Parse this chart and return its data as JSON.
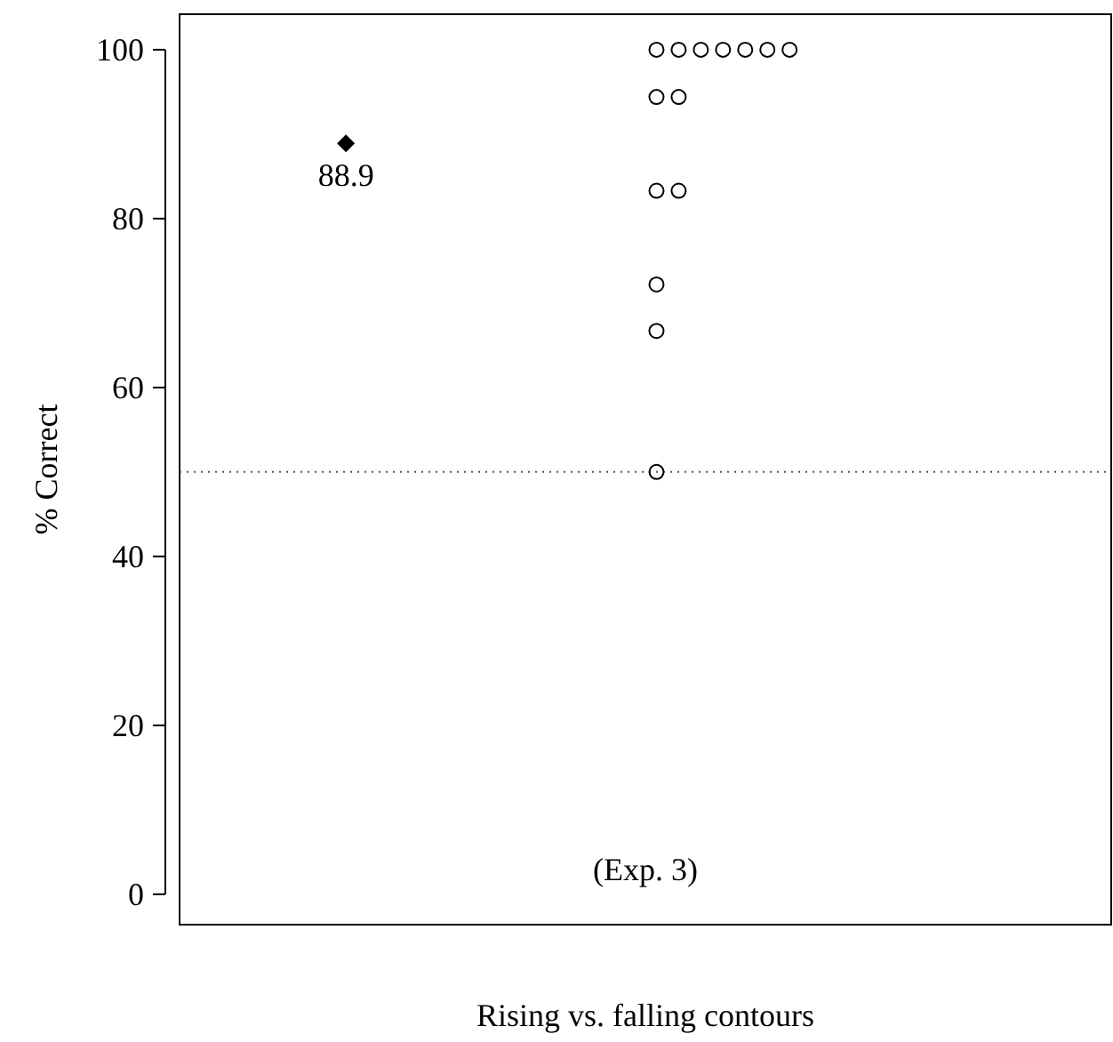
{
  "chart_data": {
    "type": "scatter",
    "ylabel": "% Correct",
    "xlabel": "Rising vs. falling contours",
    "annotations": [
      "(Exp. 3)"
    ],
    "categories": [
      null,
      null,
      null,
      null,
      null,
      null,
      null,
      null,
      null,
      null,
      null,
      null,
      null,
      null,
      null,
      null,
      null,
      null,
      null,
      null,
      null,
      null,
      null,
      null,
      null,
      null,
      null,
      null,
      null,
      null,
      null,
      null,
      null,
      null,
      null,
      null,
      null,
      null,
      null,
      null,
      null,
      null
    ],
    "ylim": [
      -3.6,
      104.2
    ],
    "yticks": [
      0,
      20,
      40,
      60,
      80,
      100
    ],
    "grid": false,
    "tick_labels": "y",
    "ref_lines": [
      {
        "axis": "y",
        "value": 50,
        "line_style": "dotted",
        "color": "#555555"
      }
    ],
    "series": [
      {
        "color": "#000000",
        "marker": "diamond",
        "values": [
          null,
          null,
          null,
          null,
          null,
          null,
          null,
          88.9,
          null,
          null,
          null,
          null,
          null,
          null,
          null,
          null,
          null,
          null,
          null,
          null,
          null,
          null,
          null,
          null,
          null,
          null,
          null,
          null,
          null,
          null,
          null,
          null,
          null,
          null,
          null,
          null,
          null,
          null,
          null,
          null,
          null,
          null
        ],
        "value_labels": [
          null,
          null,
          null,
          null,
          null,
          null,
          null,
          "88.9",
          null,
          null,
          null,
          null,
          null,
          null,
          null,
          null,
          null,
          null,
          null,
          null,
          null,
          null,
          null,
          null,
          null,
          null,
          null,
          null,
          null,
          null,
          null,
          null,
          null,
          null,
          null,
          null,
          null,
          null,
          null,
          null,
          null,
          null
        ]
      },
      {
        "color": "#000000",
        "marker": "circle",
        "values": [
          null,
          null,
          null,
          null,
          null,
          null,
          null,
          null,
          null,
          null,
          null,
          null,
          null,
          null,
          null,
          null,
          null,
          null,
          null,
          null,
          null,
          100,
          100,
          100,
          100,
          100,
          100,
          100,
          null,
          null,
          null,
          null,
          null,
          null,
          null,
          null,
          null,
          null,
          null,
          null,
          null,
          null
        ]
      },
      {
        "color": "#000000",
        "marker": "circle",
        "values": [
          null,
          null,
          null,
          null,
          null,
          null,
          null,
          null,
          null,
          null,
          null,
          null,
          null,
          null,
          null,
          null,
          null,
          null,
          null,
          null,
          null,
          94.4,
          94.4,
          null,
          null,
          null,
          null,
          null,
          null,
          null,
          null,
          null,
          null,
          null,
          null,
          null,
          null,
          null,
          null,
          null,
          null,
          null
        ]
      },
      {
        "color": "#000000",
        "marker": "circle",
        "values": [
          null,
          null,
          null,
          null,
          null,
          null,
          null,
          null,
          null,
          null,
          null,
          null,
          null,
          null,
          null,
          null,
          null,
          null,
          null,
          null,
          null,
          83.3,
          83.3,
          null,
          null,
          null,
          null,
          null,
          null,
          null,
          null,
          null,
          null,
          null,
          null,
          null,
          null,
          null,
          null,
          null,
          null,
          null
        ]
      },
      {
        "color": "#000000",
        "marker": "circle",
        "values": [
          null,
          null,
          null,
          null,
          null,
          null,
          null,
          null,
          null,
          null,
          null,
          null,
          null,
          null,
          null,
          null,
          null,
          null,
          null,
          null,
          null,
          72.2,
          null,
          null,
          null,
          null,
          null,
          null,
          null,
          null,
          null,
          null,
          null,
          null,
          null,
          null,
          null,
          null,
          null,
          null,
          null,
          null
        ]
      },
      {
        "color": "#000000",
        "marker": "circle",
        "values": [
          null,
          null,
          null,
          null,
          null,
          null,
          null,
          null,
          null,
          null,
          null,
          null,
          null,
          null,
          null,
          null,
          null,
          null,
          null,
          null,
          null,
          66.7,
          null,
          null,
          null,
          null,
          null,
          null,
          null,
          null,
          null,
          null,
          null,
          null,
          null,
          null,
          null,
          null,
          null,
          null,
          null,
          null
        ]
      },
      {
        "color": "#000000",
        "marker": "circle",
        "values": [
          null,
          null,
          null,
          null,
          null,
          null,
          null,
          null,
          null,
          null,
          null,
          null,
          null,
          null,
          null,
          null,
          null,
          null,
          null,
          null,
          null,
          50,
          null,
          null,
          null,
          null,
          null,
          null,
          null,
          null,
          null,
          null,
          null,
          null,
          null,
          null,
          null,
          null,
          null,
          null,
          null,
          null
        ]
      }
    ]
  }
}
